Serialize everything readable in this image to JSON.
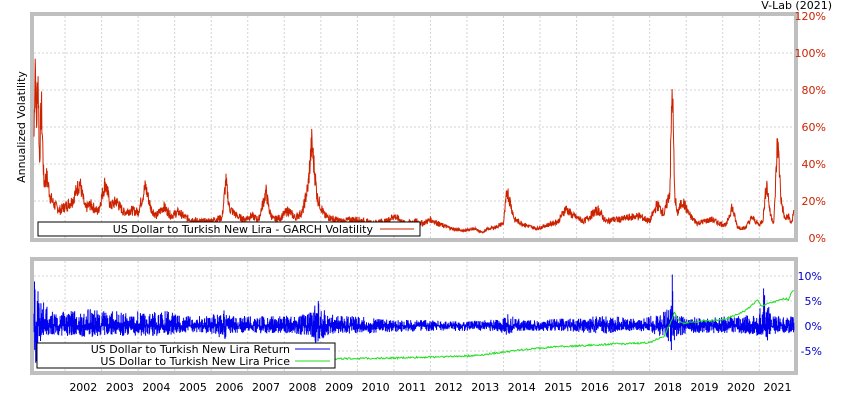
{
  "watermark": "V-Lab (2021)",
  "colors": {
    "frame": "#bfbfbf",
    "grid": "#d3d3d3",
    "volatility": "#cc2200",
    "return": "#0000ee",
    "price": "#22dd22",
    "axis_top": "#cc2200",
    "axis_bottom": "#0000cc"
  },
  "chart_data": [
    {
      "type": "line",
      "ylabel": "Annualized Volatility",
      "yticks": [
        "120%",
        "100%",
        "80%",
        "60%",
        "40%",
        "20%",
        "0%"
      ],
      "ylim": [
        0,
        120
      ],
      "xlim": [
        2001.15,
        2021.95
      ],
      "grid": true,
      "legend_position": "bottom-left",
      "series": [
        {
          "name": "US Dollar to Turkish New Lira - GARCH Volatility",
          "color": "#cc2200",
          "x": [
            2001.15,
            2001.18,
            2001.22,
            2001.26,
            2001.3,
            2001.35,
            2001.42,
            2001.5,
            2001.6,
            2001.7,
            2001.85,
            2002.0,
            2002.2,
            2002.4,
            2002.55,
            2002.7,
            2002.9,
            2003.1,
            2003.25,
            2003.4,
            2003.6,
            2003.8,
            2004.0,
            2004.2,
            2004.35,
            2004.5,
            2004.7,
            2004.9,
            2005.1,
            2005.3,
            2005.5,
            2005.7,
            2005.9,
            2006.1,
            2006.3,
            2006.4,
            2006.5,
            2006.7,
            2006.9,
            2007.1,
            2007.3,
            2007.5,
            2007.6,
            2007.7,
            2007.9,
            2008.1,
            2008.3,
            2008.5,
            2008.65,
            2008.75,
            2008.82,
            2008.9,
            2009.0,
            2009.1,
            2009.25,
            2009.4,
            2009.6,
            2009.8,
            2010.0,
            2010.2,
            2010.4,
            2010.6,
            2010.8,
            2011.0,
            2011.3,
            2011.6,
            2011.8,
            2012.0,
            2012.3,
            2012.6,
            2012.9,
            2013.2,
            2013.4,
            2013.6,
            2013.8,
            2014.0,
            2014.1,
            2014.3,
            2014.6,
            2014.9,
            2015.2,
            2015.5,
            2015.7,
            2015.9,
            2016.2,
            2016.5,
            2016.6,
            2016.8,
            2017.0,
            2017.2,
            2017.4,
            2017.7,
            2018.0,
            2018.2,
            2018.4,
            2018.55,
            2018.62,
            2018.68,
            2018.75,
            2018.9,
            2019.1,
            2019.3,
            2019.5,
            2019.7,
            2019.9,
            2020.1,
            2020.25,
            2020.4,
            2020.6,
            2020.8,
            2021.0,
            2021.1,
            2021.2,
            2021.3,
            2021.4,
            2021.5,
            2021.6,
            2021.7,
            2021.8,
            2021.85,
            2021.9,
            2021.95
          ],
          "values": [
            55,
            101,
            60,
            90,
            40,
            73,
            30,
            33,
            22,
            18,
            15,
            17,
            20,
            30,
            16,
            18,
            14,
            30,
            17,
            20,
            14,
            15,
            14,
            28,
            16,
            12,
            17,
            12,
            14,
            11,
            10,
            9,
            9,
            10,
            11,
            31,
            16,
            12,
            10,
            12,
            10,
            25,
            14,
            10,
            11,
            15,
            11,
            14,
            28,
            51,
            38,
            22,
            17,
            12,
            11,
            10,
            9,
            10,
            10,
            9,
            8,
            9,
            9,
            12,
            8,
            9,
            8,
            10,
            7,
            5,
            4,
            5,
            3,
            5,
            6,
            8,
            26,
            10,
            7,
            5,
            7,
            9,
            16,
            12,
            9,
            14,
            15,
            9,
            10,
            10,
            11,
            12,
            9,
            18,
            13,
            25,
            83,
            25,
            13,
            20,
            12,
            8,
            9,
            10,
            8,
            7,
            17,
            6,
            5,
            11,
            7,
            10,
            30,
            13,
            8,
            54,
            20,
            10,
            12,
            9,
            8,
            18
          ]
        }
      ]
    },
    {
      "type": "line",
      "yticks": [
        "10%",
        "5%",
        "0%",
        "-5%"
      ],
      "ylim": [
        -9,
        13
      ],
      "xlim": [
        2001.15,
        2021.95
      ],
      "xticks": [
        "2002",
        "2003",
        "2004",
        "2005",
        "2006",
        "2007",
        "2008",
        "2009",
        "2010",
        "2011",
        "2012",
        "2013",
        "2014",
        "2015",
        "2016",
        "2017",
        "2018",
        "2019",
        "2020",
        "2021"
      ],
      "grid": true,
      "legend_position": "bottom-left",
      "series": [
        {
          "name": "US Dollar to Turkish New Lira Return",
          "color": "#0000ee",
          "x": [
            2001.15,
            2001.2,
            2001.25,
            2001.3,
            2001.4,
            2001.5,
            2001.6,
            2001.7,
            2001.8,
            2002.0,
            2002.3,
            2002.6,
            2003.0,
            2003.4,
            2003.7,
            2004.0,
            2004.4,
            2004.8,
            2005.2,
            2005.6,
            2006.0,
            2006.4,
            2006.42,
            2006.6,
            2007.0,
            2007.5,
            2008.0,
            2008.5,
            2008.8,
            2008.85,
            2009.2,
            2009.6,
            2010.0,
            2010.5,
            2011.0,
            2011.5,
            2012.0,
            2012.5,
            2013.0,
            2013.5,
            2014.0,
            2014.05,
            2014.5,
            2015.0,
            2015.5,
            2016.0,
            2016.5,
            2017.0,
            2017.5,
            2018.0,
            2018.4,
            2018.58,
            2018.62,
            2018.66,
            2018.72,
            2018.8,
            2019.0,
            2019.5,
            2020.0,
            2020.5,
            2021.0,
            2021.1,
            2021.2,
            2021.25,
            2021.3,
            2021.5,
            2021.8,
            2021.95
          ],
          "lows": [
            -5,
            -8,
            -6,
            -4,
            -3,
            -3,
            -2.5,
            -2.5,
            -2,
            -2,
            -2,
            -2.5,
            -2,
            -2,
            -2,
            -2,
            -2,
            -2,
            -1.5,
            -1.5,
            -1.5,
            -3,
            -2,
            -1.5,
            -1.5,
            -1.5,
            -1.5,
            -2,
            -3,
            -3.5,
            -2,
            -1.5,
            -1.5,
            -1.5,
            -1.2,
            -1.2,
            -1,
            -1,
            -1,
            -1,
            -1.5,
            -2,
            -1,
            -1,
            -1,
            -1.2,
            -1.5,
            -1.5,
            -1,
            -1.2,
            -2.5,
            -4,
            -8,
            -4,
            -3,
            -2,
            -1.5,
            -1.5,
            -1.5,
            -1.5,
            -2,
            -3,
            -2,
            -5,
            -2,
            -1.5,
            -1.5,
            -1.5
          ],
          "highs": [
            12,
            9,
            10,
            6,
            5,
            4,
            3.5,
            3,
            3,
            3,
            3,
            3.5,
            3,
            3,
            2.5,
            3,
            3,
            3,
            2,
            2,
            2,
            4,
            2.5,
            2,
            2,
            2,
            2,
            2.5,
            3,
            6,
            2.5,
            2,
            2,
            1.5,
            1.2,
            1.2,
            1.2,
            1,
            1,
            1.2,
            1.5,
            3,
            1.2,
            1.2,
            1.5,
            1.5,
            2,
            2,
            1.5,
            2,
            3,
            4,
            13,
            4,
            3,
            2,
            2,
            1.5,
            2,
            2,
            2.5,
            9,
            3,
            5,
            3,
            2,
            2,
            2
          ]
        },
        {
          "name": "US Dollar to Turkish New Lira Price",
          "color": "#22dd22",
          "x": [
            2008.0,
            2009.0,
            2010.0,
            2011.0,
            2012.0,
            2013.0,
            2013.5,
            2014.0,
            2015.0,
            2015.5,
            2016.0,
            2016.5,
            2017.0,
            2017.5,
            2018.0,
            2018.4,
            2018.62,
            2018.68,
            2018.75,
            2018.9,
            2019.1,
            2019.5,
            2020.0,
            2020.3,
            2020.6,
            2020.85,
            2020.95,
            2021.05,
            2021.25,
            2021.5,
            2021.7,
            2021.8,
            2021.9,
            2021.95
          ],
          "values": [
            -6.6,
            -6.6,
            -6.5,
            -6.4,
            -6.2,
            -6.0,
            -5.7,
            -5.2,
            -4.4,
            -4.1,
            -4.0,
            -3.8,
            -3.6,
            -3.5,
            -3.3,
            -2.0,
            1.5,
            2.8,
            1.5,
            0.5,
            0.8,
            1.0,
            1.2,
            2.0,
            3.0,
            4.5,
            5.2,
            4.0,
            4.5,
            5.0,
            5.5,
            5.3,
            7.0,
            7.3
          ]
        }
      ]
    }
  ]
}
